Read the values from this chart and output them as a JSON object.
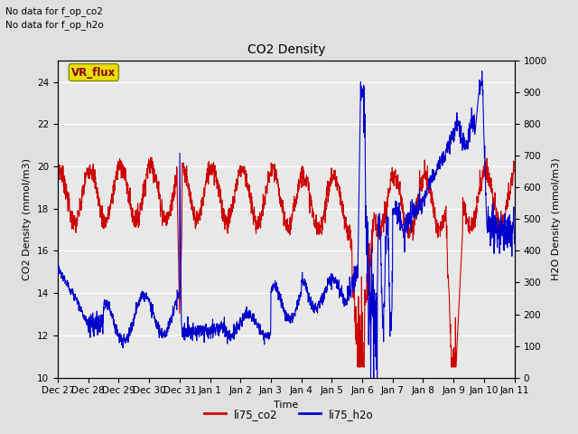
{
  "title": "CO2 Density",
  "xlabel": "Time",
  "ylabel_left": "CO2 Density (mmol/m3)",
  "ylabel_right": "H2O Density (mmol/m3)",
  "text_no_data_1": "No data for f_op_co2",
  "text_no_data_2": "No data for f_op_h2o",
  "vr_flux_label": "VR_flux",
  "ylim_left": [
    10,
    25
  ],
  "ylim_right": [
    0,
    1000
  ],
  "yticks_left": [
    10,
    12,
    14,
    16,
    18,
    20,
    22,
    24
  ],
  "yticks_right": [
    0,
    100,
    200,
    300,
    400,
    500,
    600,
    700,
    800,
    900,
    1000
  ],
  "bg_color": "#e0e0e0",
  "plot_bg_color": "#e8e8e8",
  "stripe_color": "#d8d8d8",
  "legend_entries": [
    "li75_co2",
    "li75_h2o"
  ],
  "legend_colors": [
    "#cc0000",
    "#0000cc"
  ],
  "line_color_co2": "#cc0000",
  "line_color_h2o": "#0000cc",
  "grid_color": "#ffffff",
  "tick_labels": [
    "Dec 27",
    "Dec 28",
    "Dec 29",
    "Dec 30",
    "Dec 31",
    "Jan 1",
    "Jan 2",
    "Jan 3",
    "Jan 4",
    "Jan 5",
    "Jan 6",
    "Jan 7",
    "Jan 8",
    "Jan 9",
    "Jan 10",
    "Jan 11"
  ]
}
